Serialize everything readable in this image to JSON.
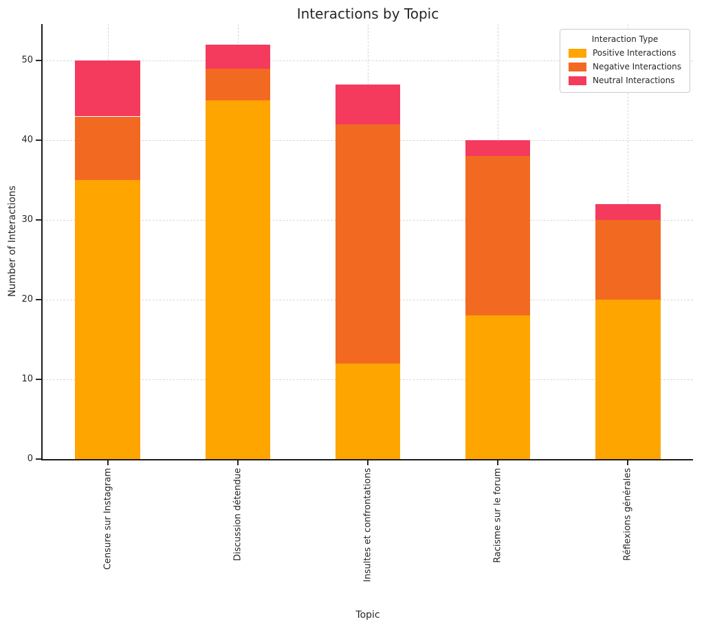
{
  "chart_data": {
    "type": "bar",
    "stacked": true,
    "title": "Interactions by Topic",
    "xlabel": "Topic",
    "ylabel": "Number of Interactions",
    "legend_title": "Interaction Type",
    "legend_position": "upper right",
    "grid": "dashed",
    "categories": [
      "Censure sur Instagram",
      "Discussion détendue",
      "Insultes et confrontations",
      "Racisme sur le forum",
      "Réflexions générales"
    ],
    "series": [
      {
        "name": "Positive Interactions",
        "color": "#FFA500",
        "values": [
          35,
          45,
          12,
          18,
          20
        ]
      },
      {
        "name": "Negative Interactions",
        "color": "#F26A21",
        "values": [
          8,
          4,
          30,
          20,
          10
        ]
      },
      {
        "name": "Neutral Interactions",
        "color": "#F43A5D",
        "values": [
          7,
          3,
          5,
          2,
          2
        ]
      }
    ],
    "totals": [
      50,
      52,
      47,
      40,
      32
    ],
    "yticks": [
      0,
      10,
      20,
      30,
      40,
      50
    ],
    "ylim": [
      0,
      54.6
    ]
  }
}
